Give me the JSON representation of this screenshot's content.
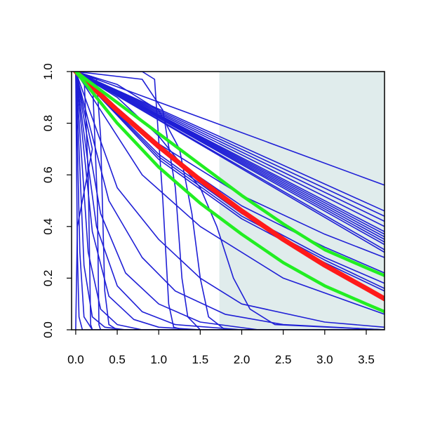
{
  "chart_data": {
    "type": "line",
    "title": "",
    "xlabel": "",
    "ylabel": "",
    "xlim": [
      -0.05,
      3.72
    ],
    "ylim": [
      0,
      1
    ],
    "x_ticks": [
      "0.0",
      "0.5",
      "1.0",
      "1.5",
      "2.0",
      "2.5",
      "3.0",
      "3.5"
    ],
    "y_ticks": [
      "0.0",
      "0.2",
      "0.4",
      "0.6",
      "0.8",
      "1.0"
    ],
    "shaded_region": {
      "x_start": 1.73,
      "x_end": 3.72,
      "color": "#e0ecec"
    },
    "colors": {
      "blue": "#1f1fd6",
      "red": "#ff1a1a",
      "green": "#22ee22"
    },
    "series": [
      {
        "color": "blue",
        "width": 1.6,
        "points": [
          [
            0,
            1
          ],
          [
            3.72,
            0.56
          ]
        ]
      },
      {
        "color": "blue",
        "width": 1.6,
        "points": [
          [
            0,
            1
          ],
          [
            3.72,
            0.46
          ]
        ]
      },
      {
        "color": "blue",
        "width": 1.6,
        "points": [
          [
            0,
            1
          ],
          [
            3.72,
            0.44
          ]
        ]
      },
      {
        "color": "blue",
        "width": 1.6,
        "points": [
          [
            0,
            1
          ],
          [
            3.72,
            0.42
          ]
        ]
      },
      {
        "color": "blue",
        "width": 1.6,
        "points": [
          [
            0,
            1
          ],
          [
            3.72,
            0.4
          ]
        ]
      },
      {
        "color": "blue",
        "width": 1.6,
        "points": [
          [
            0,
            1
          ],
          [
            3.72,
            0.38
          ]
        ]
      },
      {
        "color": "blue",
        "width": 1.6,
        "points": [
          [
            0,
            1
          ],
          [
            3.72,
            0.37
          ]
        ]
      },
      {
        "color": "blue",
        "width": 1.6,
        "points": [
          [
            0,
            1
          ],
          [
            3.72,
            0.36
          ]
        ]
      },
      {
        "color": "blue",
        "width": 1.6,
        "points": [
          [
            0,
            1
          ],
          [
            3.72,
            0.35
          ]
        ]
      },
      {
        "color": "blue",
        "width": 1.6,
        "points": [
          [
            0,
            1
          ],
          [
            3.72,
            0.34
          ]
        ]
      },
      {
        "color": "blue",
        "width": 1.6,
        "points": [
          [
            0,
            1
          ],
          [
            3.72,
            0.33
          ]
        ]
      },
      {
        "color": "blue",
        "width": 1.6,
        "points": [
          [
            0,
            1
          ],
          [
            3.72,
            0.31
          ]
        ]
      },
      {
        "color": "blue",
        "width": 1.6,
        "points": [
          [
            0,
            1
          ],
          [
            3.72,
            0.3
          ]
        ]
      },
      {
        "color": "blue",
        "width": 1.6,
        "points": [
          [
            0,
            1
          ],
          [
            1.0,
            0.72
          ],
          [
            2.0,
            0.52
          ],
          [
            3.0,
            0.37
          ],
          [
            3.72,
            0.28
          ]
        ]
      },
      {
        "color": "blue",
        "width": 1.6,
        "points": [
          [
            0,
            1
          ],
          [
            1.0,
            0.7
          ],
          [
            2.0,
            0.48
          ],
          [
            3.0,
            0.32
          ],
          [
            3.72,
            0.22
          ]
        ]
      },
      {
        "color": "blue",
        "width": 1.6,
        "points": [
          [
            0,
            1
          ],
          [
            1.0,
            0.68
          ],
          [
            2.0,
            0.45
          ],
          [
            3.0,
            0.28
          ],
          [
            3.72,
            0.18
          ]
        ]
      },
      {
        "color": "blue",
        "width": 1.6,
        "points": [
          [
            0,
            1
          ],
          [
            1.0,
            0.67
          ],
          [
            2.0,
            0.44
          ],
          [
            3.0,
            0.27
          ],
          [
            3.72,
            0.16
          ]
        ]
      },
      {
        "color": "blue",
        "width": 1.6,
        "points": [
          [
            0,
            1
          ],
          [
            1.0,
            0.66
          ],
          [
            2.0,
            0.43
          ],
          [
            3.0,
            0.26
          ],
          [
            3.72,
            0.15
          ]
        ]
      },
      {
        "color": "blue",
        "width": 1.6,
        "points": [
          [
            0,
            1
          ],
          [
            0.8,
            0.6
          ],
          [
            1.5,
            0.4
          ],
          [
            2.5,
            0.2
          ],
          [
            3.72,
            0.06
          ]
        ]
      },
      {
        "color": "blue",
        "width": 1.6,
        "points": [
          [
            0,
            1
          ],
          [
            0.5,
            0.55
          ],
          [
            1.0,
            0.35
          ],
          [
            1.5,
            0.2
          ],
          [
            2.0,
            0.1
          ],
          [
            3.0,
            0.03
          ],
          [
            3.72,
            0.01
          ]
        ]
      },
      {
        "color": "blue",
        "width": 1.6,
        "points": [
          [
            0,
            1
          ],
          [
            0.4,
            0.5
          ],
          [
            0.8,
            0.28
          ],
          [
            1.2,
            0.15
          ],
          [
            1.8,
            0.06
          ],
          [
            2.5,
            0.02
          ],
          [
            3.72,
            0.0
          ]
        ]
      },
      {
        "color": "blue",
        "width": 1.6,
        "points": [
          [
            0,
            1
          ],
          [
            0.3,
            0.45
          ],
          [
            0.6,
            0.22
          ],
          [
            1.0,
            0.1
          ],
          [
            1.5,
            0.03
          ],
          [
            2.2,
            0.0
          ],
          [
            3.72,
            0.0
          ]
        ]
      },
      {
        "color": "blue",
        "width": 1.6,
        "points": [
          [
            0,
            1
          ],
          [
            0.25,
            0.4
          ],
          [
            0.5,
            0.17
          ],
          [
            0.8,
            0.07
          ],
          [
            1.2,
            0.02
          ],
          [
            2.0,
            0.0
          ],
          [
            3.72,
            0.0
          ]
        ]
      },
      {
        "color": "blue",
        "width": 1.6,
        "points": [
          [
            0,
            1
          ],
          [
            0.2,
            0.38
          ],
          [
            0.4,
            0.13
          ],
          [
            0.7,
            0.04
          ],
          [
            1.0,
            0.01
          ],
          [
            1.5,
            0.0
          ],
          [
            3.72,
            0.0
          ]
        ]
      },
      {
        "color": "blue",
        "width": 1.6,
        "points": [
          [
            0,
            1
          ],
          [
            0.15,
            0.3
          ],
          [
            0.3,
            0.08
          ],
          [
            0.5,
            0.02
          ],
          [
            0.8,
            0.0
          ],
          [
            3.72,
            0.0
          ]
        ]
      },
      {
        "color": "blue",
        "width": 1.6,
        "points": [
          [
            0,
            1
          ],
          [
            0.1,
            0.25
          ],
          [
            0.2,
            0.05
          ],
          [
            0.35,
            0.01
          ],
          [
            0.6,
            0.0
          ],
          [
            3.72,
            0.0
          ]
        ]
      },
      {
        "color": "blue",
        "width": 1.6,
        "points": [
          [
            0,
            1
          ],
          [
            0.05,
            0.3
          ],
          [
            0.1,
            0.05
          ],
          [
            0.2,
            0.0
          ],
          [
            3.72,
            0.0
          ]
        ]
      },
      {
        "color": "blue",
        "width": 1.6,
        "points": [
          [
            0,
            1
          ],
          [
            0.02,
            0.3
          ],
          [
            0.04,
            0.05
          ],
          [
            0.08,
            0.0
          ],
          [
            3.72,
            0.0
          ]
        ]
      },
      {
        "color": "blue",
        "width": 1.6,
        "points": [
          [
            0,
            1
          ],
          [
            0.1,
            0.99
          ],
          [
            0.15,
            0.6
          ],
          [
            0.18,
            0.02
          ],
          [
            0.2,
            0.0
          ],
          [
            3.72,
            0.0
          ]
        ]
      },
      {
        "color": "blue",
        "width": 1.6,
        "points": [
          [
            0,
            1
          ],
          [
            0.2,
            0.98
          ],
          [
            0.26,
            0.5
          ],
          [
            0.28,
            0.02
          ],
          [
            0.3,
            0.0
          ],
          [
            3.72,
            0.0
          ]
        ]
      },
      {
        "color": "blue",
        "width": 1.6,
        "points": [
          [
            0,
            1
          ],
          [
            0.25,
            0.97
          ],
          [
            0.3,
            0.75
          ],
          [
            0.35,
            0.15
          ],
          [
            0.4,
            0.02
          ],
          [
            0.5,
            0.0
          ],
          [
            3.72,
            0.0
          ]
        ]
      },
      {
        "color": "blue",
        "width": 1.6,
        "points": [
          [
            0,
            1
          ],
          [
            0.8,
            1.0
          ],
          [
            0.95,
            0.97
          ],
          [
            1.05,
            0.5
          ],
          [
            1.12,
            0.1
          ],
          [
            1.18,
            0.01
          ],
          [
            1.3,
            0.0
          ],
          [
            3.72,
            0.0
          ]
        ]
      },
      {
        "color": "blue",
        "width": 1.6,
        "points": [
          [
            0,
            1
          ],
          [
            0.8,
            0.97
          ],
          [
            1.05,
            0.85
          ],
          [
            1.2,
            0.55
          ],
          [
            1.28,
            0.2
          ],
          [
            1.35,
            0.05
          ],
          [
            1.5,
            0.0
          ],
          [
            3.72,
            0.0
          ]
        ]
      },
      {
        "color": "blue",
        "width": 1.6,
        "points": [
          [
            0,
            1
          ],
          [
            0.5,
            0.95
          ],
          [
            1.0,
            0.85
          ],
          [
            1.25,
            0.7
          ],
          [
            1.4,
            0.45
          ],
          [
            1.5,
            0.2
          ],
          [
            1.6,
            0.05
          ],
          [
            1.8,
            0.0
          ],
          [
            3.72,
            0.0
          ]
        ]
      },
      {
        "color": "blue",
        "width": 1.6,
        "points": [
          [
            0,
            1
          ],
          [
            0.5,
            0.9
          ],
          [
            1.0,
            0.75
          ],
          [
            1.5,
            0.55
          ],
          [
            1.7,
            0.4
          ],
          [
            1.9,
            0.2
          ],
          [
            2.1,
            0.08
          ],
          [
            2.4,
            0.02
          ],
          [
            3.72,
            0.0
          ]
        ]
      },
      {
        "color": "blue",
        "width": 1.6,
        "points": [
          [
            0,
            1
          ],
          [
            0.2,
            0.7
          ],
          [
            0.02,
            0.4
          ],
          [
            0.0,
            0.0
          ]
        ]
      },
      {
        "color": "red",
        "width": 7,
        "points": [
          [
            0,
            1
          ],
          [
            0.5,
            0.85
          ],
          [
            1.0,
            0.71
          ],
          [
            1.5,
            0.58
          ],
          [
            2.0,
            0.46
          ],
          [
            2.5,
            0.35
          ],
          [
            3.0,
            0.25
          ],
          [
            3.5,
            0.16
          ],
          [
            3.72,
            0.12
          ]
        ]
      },
      {
        "color": "green",
        "width": 4.5,
        "points": [
          [
            0,
            1
          ],
          [
            0.5,
            0.88
          ],
          [
            1.0,
            0.76
          ],
          [
            1.5,
            0.64
          ],
          [
            2.0,
            0.52
          ],
          [
            2.5,
            0.41
          ],
          [
            3.0,
            0.31
          ],
          [
            3.5,
            0.24
          ],
          [
            3.72,
            0.21
          ]
        ]
      },
      {
        "color": "green",
        "width": 4.5,
        "points": [
          [
            0,
            1
          ],
          [
            0.5,
            0.8
          ],
          [
            1.0,
            0.63
          ],
          [
            1.5,
            0.49
          ],
          [
            2.0,
            0.37
          ],
          [
            2.5,
            0.26
          ],
          [
            3.0,
            0.17
          ],
          [
            3.5,
            0.1
          ],
          [
            3.72,
            0.07
          ]
        ]
      }
    ]
  }
}
